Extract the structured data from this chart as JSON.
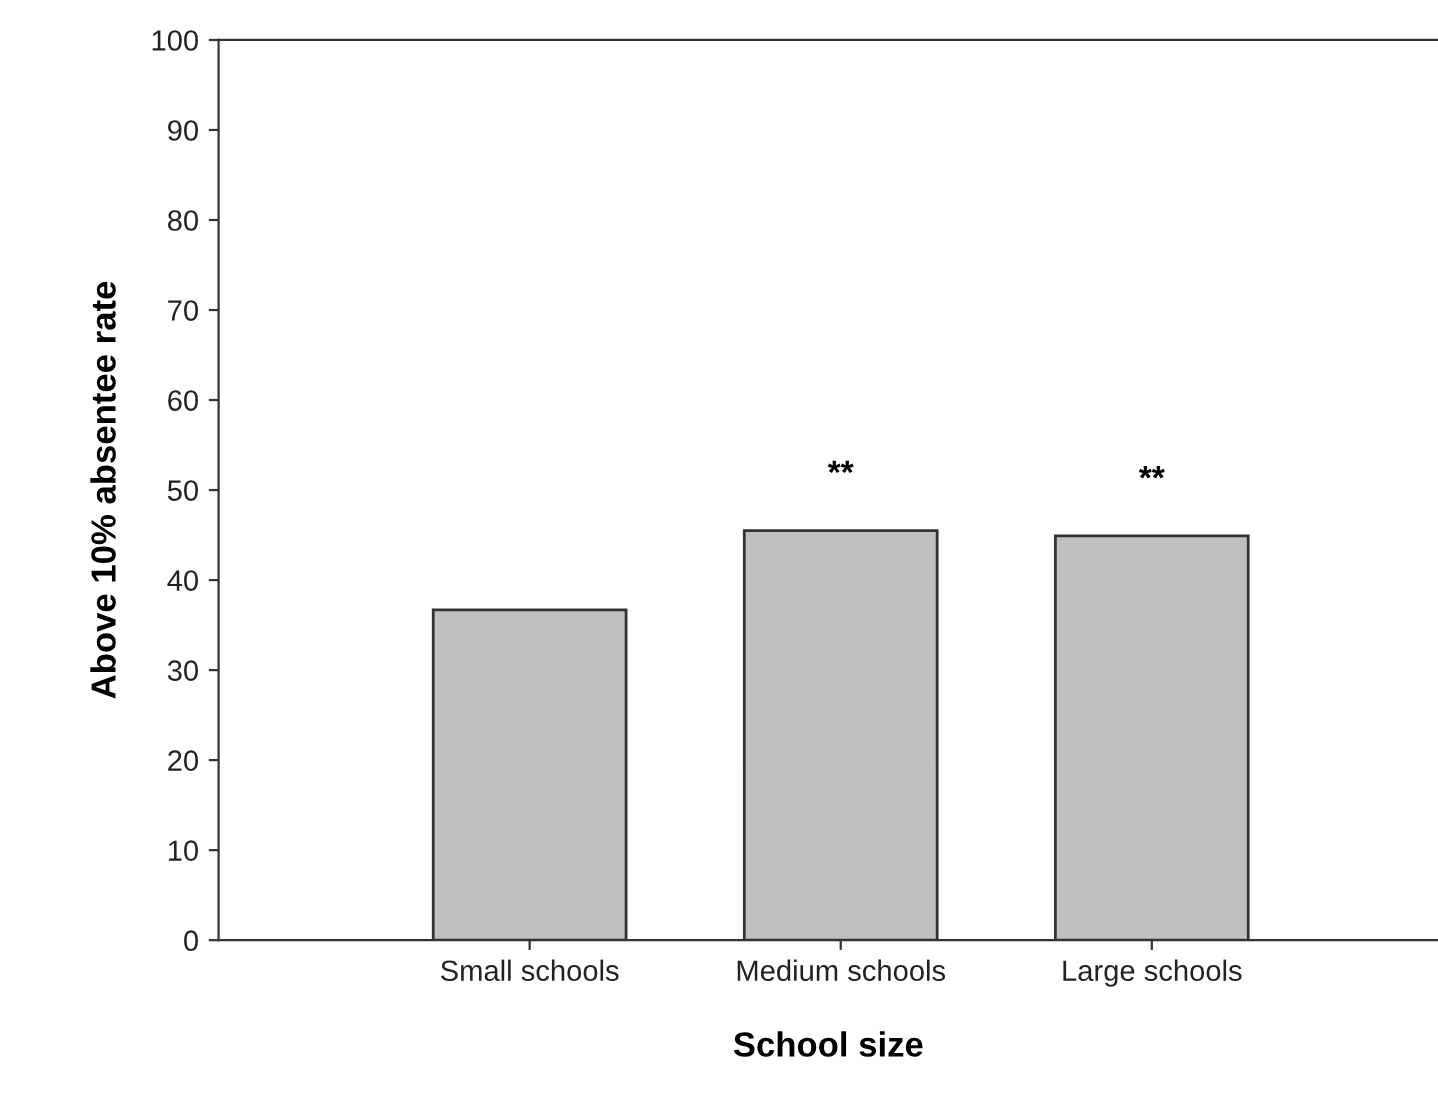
{
  "chart_data": {
    "type": "bar",
    "xlabel": "School size",
    "ylabel": "Above 10% absentee rate",
    "categories": [
      "Small schools",
      "Medium schools",
      "Large schools"
    ],
    "values": [
      36.7,
      45.5,
      44.9
    ],
    "color": "#c0c0c0",
    "ylim": [
      0,
      100
    ],
    "yticks": [
      0,
      10,
      20,
      30,
      40,
      50,
      60,
      70,
      80,
      90,
      100
    ],
    "grid": false,
    "legend": false,
    "annotations": [
      {
        "text": "**",
        "x": "Medium schools",
        "y": 45.5
      },
      {
        "text": "**",
        "x": "Large schools",
        "y": 44.9
      }
    ]
  }
}
